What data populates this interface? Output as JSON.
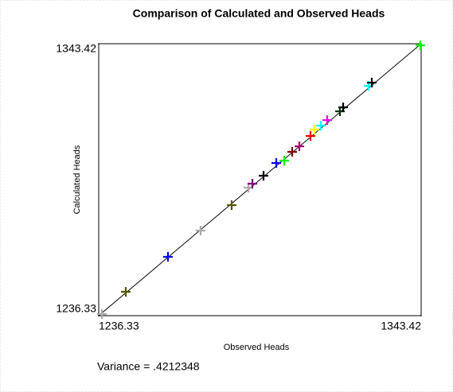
{
  "chart_data": {
    "type": "scatter",
    "title": "Comparison of Calculated and Observed Heads",
    "x_label": "Observed Heads",
    "y_label": "Calculated Heads",
    "annotation": "Variance = .4212348",
    "xlim": [
      1236.33,
      1343.42
    ],
    "xticks": [
      1236.33,
      1343.42
    ],
    "ylim": [
      1236.33,
      1343.42
    ],
    "yticks": [
      1236.33,
      1343.42
    ],
    "x": [
      1237.39,
      1245.32,
      1259.33,
      1270.17,
      1280.48,
      1286.04,
      1287.37,
      1291.07,
      1295.3,
      1297.95,
      1300.59,
      1302.97,
      1306.67,
      1307.99,
      1310.11,
      1312.22,
      1316.45,
      1317.51,
      1325.97,
      1327.03,
      1343.15
    ],
    "values": [
      1236.96,
      1245.72,
      1259.5,
      1269.83,
      1279.85,
      1286.74,
      1288.31,
      1291.44,
      1296.45,
      1297.39,
      1300.83,
      1303.02,
      1307.09,
      1309.6,
      1311.16,
      1313.36,
      1316.8,
      1318.36,
      1326.84,
      1328.1,
      1342.79
    ],
    "colors": [
      "#aaaaaa",
      "#555500",
      "#0000ff",
      "#aaaaaa",
      "#555500",
      "#aaaaaa",
      "#800080",
      "#000000",
      "#0000ff",
      "#00ff00",
      "#800000",
      "#aa0077",
      "#ff0000",
      "#ffff00",
      "#00ffff",
      "#ff00ff",
      "#003300",
      "#000000",
      "#00ffff",
      "#000000",
      "#00ff00"
    ]
  }
}
